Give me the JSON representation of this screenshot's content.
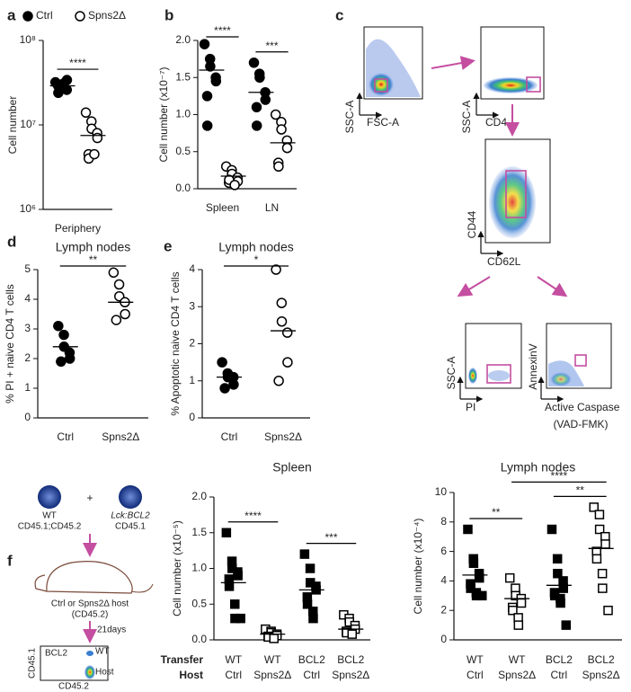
{
  "chart_data": [
    {
      "type": "dot",
      "panel": "a",
      "ylabel": "Cell number",
      "log": true,
      "legend": "top",
      "ylim": [
        1000000,
        100000000
      ],
      "yticks": [
        {
          "value": 1000000,
          "label": "10⁶"
        },
        {
          "value": 10000000,
          "label": "10⁷"
        },
        {
          "value": 100000000,
          "label": "10⁸"
        }
      ],
      "categories": [
        "Periphery"
      ],
      "groups": [
        {
          "name": "Ctrl",
          "marker": "circle",
          "fill": "filled",
          "values": [
            32000000,
            28000000,
            30000000,
            26000000,
            34000000,
            29000000,
            24000000,
            31000000
          ],
          "mean": 29000000
        },
        {
          "name": "Spns2Δ",
          "marker": "circle",
          "fill": "open",
          "values": [
            14000000,
            11000000,
            9000000,
            8000000,
            7000000,
            4500000,
            4000000,
            4500000
          ],
          "mean": 7500000
        }
      ],
      "annotations": [
        {
          "text": "****",
          "from": 0,
          "to": 1
        }
      ]
    },
    {
      "type": "dot",
      "panel": "b",
      "ylabel": "Cell number (x10⁻⁷)",
      "ylim": [
        0,
        2
      ],
      "yticks": [
        {
          "value": 0,
          "label": "0.0"
        },
        0.5,
        {
          "value": 1,
          "label": "1.0"
        },
        1.5,
        {
          "value": 2,
          "label": "2.0"
        }
      ],
      "categories": [
        "Spleen",
        "LN"
      ],
      "groups": [
        {
          "marker": "circle",
          "fill": "filled",
          "values": [
            1.95,
            1.75,
            1.65,
            1.5,
            1.45,
            1.25,
            0.85
          ],
          "mean": 1.6
        },
        {
          "marker": "circle",
          "fill": "open",
          "values": [
            0.3,
            0.25,
            0.2,
            0.15,
            0.1,
            0.08,
            0.12,
            0.05
          ],
          "mean": 0.17
        },
        {
          "marker": "circle",
          "fill": "filled",
          "values": [
            1.7,
            1.55,
            1.5,
            1.3,
            1.2,
            1.1,
            0.85
          ],
          "mean": 1.3
        },
        {
          "marker": "circle",
          "fill": "open",
          "values": [
            1.0,
            0.9,
            0.8,
            0.65,
            0.55,
            0.35,
            0.3
          ],
          "mean": 0.62
        }
      ],
      "annotations": [
        {
          "text": "****",
          "from": 0,
          "to": 1
        },
        {
          "text": "***",
          "from": 2,
          "to": 3
        }
      ]
    },
    {
      "type": "dot",
      "panel": "d",
      "title": "Lymph nodes",
      "ylabel": "% PI + naive CD4 T cells",
      "ylim": [
        0,
        5
      ],
      "yticks": [
        0,
        1,
        2,
        3,
        4,
        5
      ],
      "categories": [
        "Ctrl",
        "Spns2Δ"
      ],
      "groups": [
        {
          "marker": "circle",
          "fill": "filled",
          "values": [
            3.1,
            2.8,
            2.4,
            2.2,
            2.0,
            1.9
          ],
          "mean": 2.4
        },
        {
          "marker": "circle",
          "fill": "open",
          "values": [
            4.9,
            4.5,
            4.1,
            3.9,
            3.5,
            3.3
          ],
          "mean": 3.9
        }
      ],
      "annotations": [
        {
          "text": "**",
          "from": 0,
          "to": 1
        }
      ]
    },
    {
      "type": "dot",
      "panel": "e",
      "title": "Lymph nodes",
      "ylabel": "% Apoptotic naive CD4 T cells",
      "ylim": [
        0,
        4
      ],
      "yticks": [
        0,
        1,
        2,
        3,
        4
      ],
      "categories": [
        "Ctrl",
        "Spns2Δ"
      ],
      "groups": [
        {
          "marker": "circle",
          "fill": "filled",
          "values": [
            1.5,
            1.2,
            1.1,
            1.1,
            0.9,
            0.8
          ],
          "mean": 1.1
        },
        {
          "marker": "circle",
          "fill": "open",
          "values": [
            4.0,
            3.1,
            2.6,
            2.3,
            1.5,
            1.0
          ],
          "mean": 2.35
        }
      ],
      "annotations": [
        {
          "text": "*",
          "from": 0,
          "to": 1
        }
      ]
    },
    {
      "type": "dot",
      "title": "Spleen",
      "ylabel": "Cell number (x10⁻⁵)",
      "ylim": [
        0,
        2
      ],
      "yticks": [
        {
          "value": 0,
          "label": "0.0"
        },
        0.5,
        {
          "value": 1,
          "label": "1.0"
        },
        1.5,
        {
          "value": 2,
          "label": "2.0"
        }
      ],
      "category_rows": [
        {
          "name": "Transfer",
          "labels": [
            "WT",
            "WT",
            "BCL2",
            "BCL2"
          ]
        },
        {
          "name": "Host",
          "labels": [
            "Ctrl",
            "Spns2Δ",
            "Ctrl",
            "Spns2Δ"
          ]
        }
      ],
      "groups": [
        {
          "marker": "square",
          "fill": "filled",
          "values": [
            1.5,
            1.1,
            1.0,
            0.95,
            0.9,
            0.85,
            0.75,
            0.5,
            0.3,
            0.3
          ],
          "mean": 0.8
        },
        {
          "marker": "square",
          "fill": "open",
          "values": [
            0.15,
            0.12,
            0.1,
            0.08,
            0.06,
            0.05,
            0.04,
            0.02
          ],
          "mean": 0.08
        },
        {
          "marker": "square",
          "fill": "filled",
          "values": [
            1.2,
            1.0,
            0.8,
            0.75,
            0.7,
            0.6,
            0.5,
            0.4,
            0.3
          ],
          "mean": 0.7
        },
        {
          "marker": "square",
          "fill": "open",
          "values": [
            0.35,
            0.3,
            0.25,
            0.2,
            0.15,
            0.12,
            0.1,
            0.08
          ],
          "mean": 0.15
        }
      ],
      "annotations": [
        {
          "text": "****",
          "from": 0,
          "to": 1
        },
        {
          "text": "***",
          "from": 2,
          "to": 3
        }
      ]
    },
    {
      "type": "dot",
      "title": "Lymph nodes",
      "ylabel": "Cell number (x10⁻⁴)",
      "ylim": [
        0,
        10
      ],
      "yticks": [
        0,
        2,
        4,
        6,
        8,
        10
      ],
      "category_rows": [
        {
          "labels": [
            "WT",
            "WT",
            "BCL2",
            "BCL2"
          ]
        },
        {
          "labels": [
            "Ctrl",
            "Spns2Δ",
            "Ctrl",
            "Spns2Δ"
          ]
        }
      ],
      "groups": [
        {
          "marker": "square",
          "fill": "filled",
          "values": [
            7.5,
            5.5,
            5.2,
            4.5,
            4.2,
            3.8,
            3.5,
            3.2,
            3.0,
            3.0
          ],
          "mean": 4.4
        },
        {
          "marker": "square",
          "fill": "open",
          "values": [
            4.2,
            3.5,
            3.0,
            2.8,
            2.5,
            2.2,
            2.0,
            1.5,
            1.0
          ],
          "mean": 2.8
        },
        {
          "marker": "square",
          "fill": "filled",
          "values": [
            7.5,
            5.5,
            4.5,
            4.0,
            3.5,
            3.2,
            3.0,
            2.8,
            2.5,
            1.0
          ],
          "mean": 3.7
        },
        {
          "marker": "square",
          "fill": "open",
          "values": [
            9.0,
            8.5,
            7.5,
            7.0,
            6.5,
            6.0,
            5.5,
            4.5,
            3.5,
            2.0
          ],
          "mean": 6.2
        }
      ],
      "annotations": [
        {
          "text": "**",
          "from": 0,
          "to": 1
        },
        {
          "text": "**",
          "from": 2,
          "to": 3
        },
        {
          "text": "****",
          "from": 1,
          "to": 3
        }
      ]
    }
  ],
  "flow": {
    "panel": "c",
    "plots": [
      {
        "xlabel": "FSC-A",
        "ylabel": "SSC-A"
      },
      {
        "xlabel": "CD4",
        "ylabel": "SSC-A"
      },
      {
        "xlabel": "CD62L",
        "ylabel": "CD44"
      },
      {
        "xlabel": "PI",
        "ylabel": "SSC-A"
      },
      {
        "xlabel": [
          "Active Caspase",
          "(VAD-FMK)"
        ],
        "ylabel": "AnnexinV"
      }
    ]
  },
  "schematic": {
    "panel": "f",
    "donor1": [
      "WT",
      "CD45.1;CD45.2"
    ],
    "plus": "+",
    "donor2": [
      "Lck:BCL2",
      "CD45.1"
    ],
    "host": [
      "Ctrl or Spns2Δ host",
      "(CD45.2)"
    ],
    "time": "21days",
    "flow": {
      "populations": [
        "BCL2",
        "WT",
        "Host"
      ],
      "ylabel": "CD45.1",
      "xlabel": "CD45.2"
    }
  }
}
